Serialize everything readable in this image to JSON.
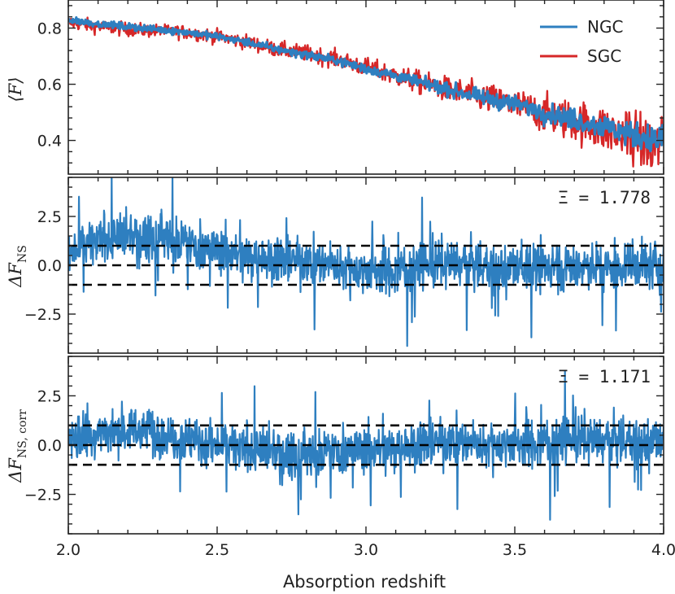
{
  "chart_data": [
    {
      "type": "line",
      "panel": "top",
      "ylabel": "⟨F⟩",
      "xlim": [
        2.0,
        4.0
      ],
      "ylim": [
        0.28,
        0.9
      ],
      "yticks": [
        0.4,
        0.6,
        0.8
      ],
      "ytick_labels": [
        "0.4",
        "0.6",
        "0.8"
      ],
      "legend": "top-right",
      "series": [
        {
          "name": "NGC",
          "color": "#2e7fc0",
          "x": [
            2.0,
            2.1,
            2.2,
            2.3,
            2.4,
            2.5,
            2.6,
            2.7,
            2.8,
            2.9,
            3.0,
            3.1,
            3.2,
            3.3,
            3.4,
            3.5,
            3.6,
            3.7,
            3.8,
            3.9,
            4.0
          ],
          "y": [
            0.83,
            0.815,
            0.805,
            0.795,
            0.785,
            0.77,
            0.75,
            0.725,
            0.705,
            0.685,
            0.655,
            0.63,
            0.6,
            0.575,
            0.55,
            0.53,
            0.5,
            0.475,
            0.45,
            0.42,
            0.395
          ]
        },
        {
          "name": "SGC",
          "color": "#d62728",
          "x": [
            2.0,
            2.1,
            2.2,
            2.3,
            2.4,
            2.5,
            2.6,
            2.7,
            2.8,
            2.9,
            3.0,
            3.1,
            3.2,
            3.3,
            3.4,
            3.5,
            3.6,
            3.7,
            3.8,
            3.9,
            4.0
          ],
          "y": [
            0.82,
            0.805,
            0.795,
            0.79,
            0.785,
            0.77,
            0.75,
            0.725,
            0.71,
            0.69,
            0.66,
            0.63,
            0.6,
            0.575,
            0.55,
            0.525,
            0.495,
            0.47,
            0.44,
            0.4,
            0.38
          ]
        }
      ]
    },
    {
      "type": "line",
      "panel": "middle",
      "ylabel_main": "ΔF",
      "ylabel_sub": "NS",
      "xlim": [
        2.0,
        4.0
      ],
      "ylim": [
        -4.5,
        4.5
      ],
      "yticks": [
        -2.5,
        0.0,
        2.5
      ],
      "ytick_labels": [
        "−2.5",
        "0.0",
        "2.5"
      ],
      "annotation": "Ξ = 1.778",
      "reference_lines": [
        -1,
        0,
        1
      ],
      "series": [
        {
          "name": "ΔF_NS",
          "color": "#2e7fc0",
          "x": [
            2.0,
            2.1,
            2.2,
            2.3,
            2.4,
            2.5,
            2.6,
            2.7,
            2.8,
            2.9,
            3.0,
            3.1,
            3.2,
            3.3,
            3.4,
            3.5,
            3.6,
            3.7,
            3.8,
            3.9,
            4.0
          ],
          "trend": [
            0.6,
            1.2,
            1.4,
            1.5,
            1.2,
            0.8,
            0.5,
            0.3,
            0.2,
            0.0,
            -0.3,
            -0.2,
            0.0,
            0.1,
            -0.1,
            -0.2,
            0.0,
            0.0,
            -0.1,
            0.0,
            0.0
          ],
          "noise_amplitude": 1.1
        }
      ]
    },
    {
      "type": "line",
      "panel": "bottom",
      "ylabel_main": "ΔF",
      "ylabel_sub": "NS, corr",
      "xlim": [
        2.0,
        4.0
      ],
      "ylim": [
        -4.5,
        4.5
      ],
      "yticks": [
        -2.5,
        0.0,
        2.5
      ],
      "ytick_labels": [
        "−2.5",
        "0.0",
        "2.5"
      ],
      "xticks": [
        2.0,
        2.5,
        3.0,
        3.5,
        4.0
      ],
      "xtick_labels": [
        "2.0",
        "2.5",
        "3.0",
        "3.5",
        "4.0"
      ],
      "xlabel": "Absorption redshift",
      "annotation": "Ξ = 1.171",
      "reference_lines": [
        -1,
        0,
        1
      ],
      "series": [
        {
          "name": "ΔF_NS,corr",
          "color": "#2e7fc0",
          "x": [
            2.0,
            2.1,
            2.2,
            2.3,
            2.4,
            2.5,
            2.6,
            2.7,
            2.8,
            2.9,
            3.0,
            3.1,
            3.2,
            3.3,
            3.4,
            3.5,
            3.6,
            3.7,
            3.8,
            3.9,
            4.0
          ],
          "trend": [
            0.3,
            0.6,
            0.8,
            0.7,
            0.3,
            0.0,
            -0.3,
            -0.4,
            -0.5,
            -0.2,
            -0.2,
            -0.1,
            0.1,
            0.2,
            0.0,
            0.1,
            0.2,
            0.3,
            0.2,
            0.2,
            0.1
          ],
          "noise_amplitude": 1.1
        }
      ]
    }
  ]
}
